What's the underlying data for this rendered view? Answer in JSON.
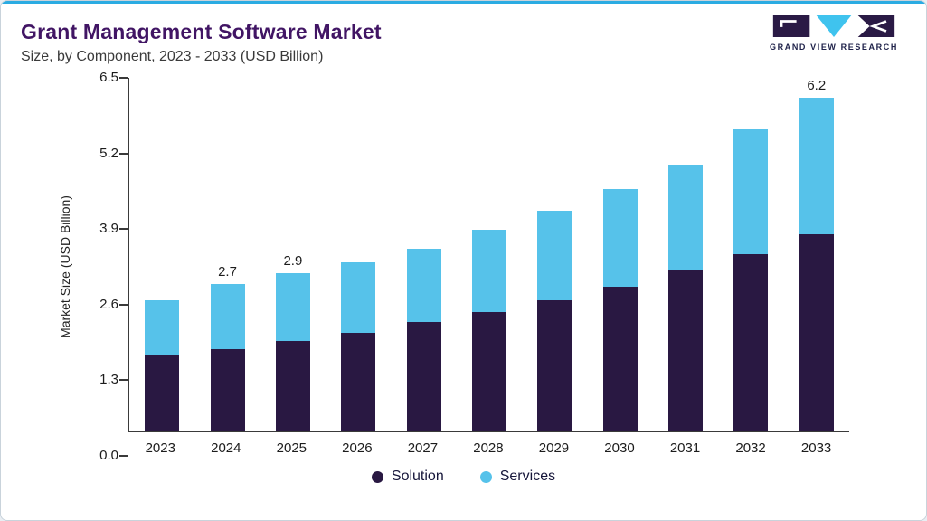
{
  "page": {
    "accent_color": "#2aabe2",
    "background_color": "#e9eef3"
  },
  "header": {
    "title": "Grant Management Software Market",
    "subtitle": "Size, by Component, 2023 - 2033 (USD Billion)"
  },
  "logo": {
    "text": "GRAND VIEW RESEARCH",
    "purple": "#2a1a45",
    "cyan": "#3fc3ee"
  },
  "chart_data": {
    "type": "bar",
    "stacked": true,
    "title": "Grant Management Software Market Size, by Component, 2023 - 2033 (USD Billion)",
    "ylabel": "Market Size (USD Billion)",
    "xlabel": "",
    "ylim": [
      0,
      6.5
    ],
    "yticks": [
      "0.0",
      "1.3",
      "2.6",
      "3.9",
      "5.2",
      "6.5"
    ],
    "grid": false,
    "categories": [
      "2023",
      "2024",
      "2025",
      "2026",
      "2027",
      "2028",
      "2029",
      "2030",
      "2031",
      "2032",
      "2033"
    ],
    "series": [
      {
        "name": "Solution",
        "color": "#291842",
        "values": [
          1.4,
          1.5,
          1.65,
          1.8,
          2.0,
          2.18,
          2.4,
          2.65,
          2.95,
          3.25,
          3.65
        ]
      },
      {
        "name": "Services",
        "color": "#56c2ea",
        "values": [
          1.0,
          1.2,
          1.25,
          1.3,
          1.35,
          1.52,
          1.65,
          1.8,
          1.95,
          2.3,
          2.55
        ]
      }
    ],
    "totals": [
      2.4,
      2.7,
      2.9,
      3.1,
      3.35,
      3.7,
      4.05,
      4.45,
      4.9,
      5.55,
      6.2
    ],
    "bar_value_labels": [
      "",
      "2.7",
      "2.9",
      "",
      "",
      "",
      "",
      "",
      "",
      "",
      "6.2"
    ],
    "legend": {
      "position": "bottom",
      "entries": [
        "Solution",
        "Services"
      ]
    }
  }
}
